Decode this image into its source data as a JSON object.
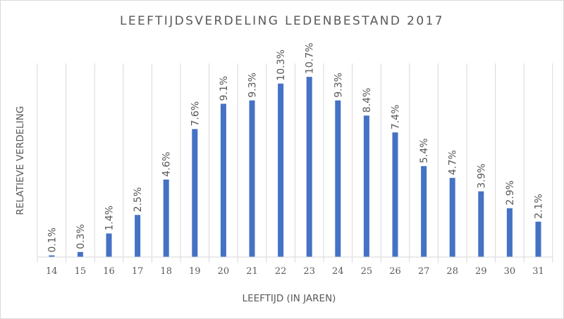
{
  "chart_data": {
    "type": "bar",
    "title": "LEEFTIJDSVERDELING LEDENBESTAND 2017",
    "xlabel": "LEEFTIJD (IN JAREN)",
    "ylabel": "RELATIEVE VERDELING",
    "categories": [
      "14",
      "15",
      "16",
      "17",
      "18",
      "19",
      "20",
      "21",
      "22",
      "23",
      "24",
      "25",
      "26",
      "27",
      "28",
      "29",
      "30",
      "31"
    ],
    "values": [
      0.1,
      0.3,
      1.4,
      2.5,
      4.6,
      7.6,
      9.1,
      9.3,
      10.3,
      10.7,
      9.3,
      8.4,
      7.4,
      5.4,
      4.7,
      3.9,
      2.9,
      2.1
    ],
    "value_labels": [
      "0.1%",
      "0.3%",
      "1.4%",
      "2.5%",
      "4.6%",
      "7.6%",
      "9.1%",
      "9.3%",
      "10.3%",
      "10.7%",
      "9.3%",
      "8.4%",
      "7.4%",
      "5.4%",
      "4.7%",
      "3.9%",
      "2.9%",
      "2.1%"
    ],
    "ylim": [
      0,
      11.5
    ],
    "grid": "vertical",
    "bar_color": "#4472c4"
  }
}
